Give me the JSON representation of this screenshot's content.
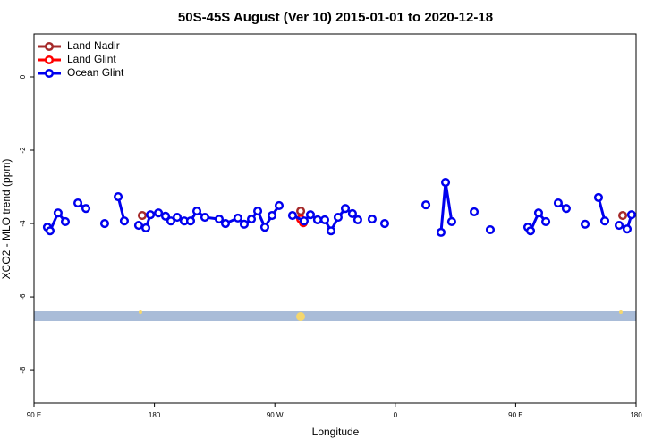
{
  "chart_data": {
    "type": "line",
    "title": "50S-45S August (Ver 10)   2015-01-01 to 2020-12-18",
    "x_label": "Longitude",
    "y_label": "XCO2 - MLO trend (ppm)",
    "xlim": [
      90,
      540
    ],
    "ylim": [
      -8.9,
      1.17
    ],
    "xticks": [
      {
        "value": 90,
        "label": "90 E"
      },
      {
        "value": 180,
        "label": "180"
      },
      {
        "value": 270,
        "label": "90 W"
      },
      {
        "value": 360,
        "label": "0"
      },
      {
        "value": 450,
        "label": "90 E"
      },
      {
        "value": 540,
        "label": "180"
      }
    ],
    "yticks": [
      0,
      -2,
      -4,
      -6,
      -8
    ],
    "grid": false,
    "legend": "top-left",
    "series": [
      {
        "name": "Land Nadir",
        "color": "#a52a2a",
        "x": [
          170.9,
          null,
          289.3,
          null,
          530
        ],
        "values": [
          -3.78,
          null,
          -3.66,
          null,
          -3.78
        ]
      },
      {
        "name": "Land Glint",
        "color": "#ff0000",
        "x": [
          289.3,
          291.3
        ],
        "values": [
          -3.88,
          -3.98
        ]
      },
      {
        "name": "Ocean Glint",
        "color": "#0000ee",
        "x": [
          100,
          102,
          108,
          113.4,
          null,
          122.8,
          128.8,
          null,
          142.8,
          null,
          152.9,
          157.5,
          null,
          168.2,
          173.6,
          177,
          183,
          188.3,
          192.3,
          197,
          202.3,
          207,
          211.7,
          217.7,
          228.4,
          233.1,
          242.4,
          247.1,
          252.5,
          257.2,
          262.5,
          267.9,
          273.2,
          null,
          283.2,
          291.9,
          296.6,
          301.9,
          307.3,
          312,
          317.3,
          322.7,
          328,
          332,
          null,
          342.7,
          null,
          352.1,
          null,
          382.9,
          null,
          394.2,
          397.6,
          402.2,
          null,
          419,
          null,
          431,
          null,
          459.1,
          461.1,
          467.1,
          472.5,
          null,
          481.8,
          487.8,
          null,
          501.9,
          null,
          511.9,
          516.6,
          null,
          527.3,
          533.3,
          536.6
        ],
        "values": [
          -4.1,
          -4.2,
          -3.71,
          -3.95,
          null,
          -3.44,
          -3.59,
          null,
          -4.0,
          null,
          -3.27,
          -3.93,
          null,
          -4.05,
          -4.12,
          -3.76,
          -3.71,
          -3.8,
          -3.93,
          -3.83,
          -3.93,
          -3.93,
          -3.66,
          -3.83,
          -3.88,
          -4.0,
          -3.85,
          -4.02,
          -3.88,
          -3.66,
          -4.1,
          -3.78,
          -3.51,
          null,
          -3.78,
          -3.93,
          -3.76,
          -3.9,
          -3.9,
          -4.2,
          -3.83,
          -3.59,
          -3.73,
          -3.9,
          null,
          -3.88,
          null,
          -4.0,
          null,
          -3.49,
          null,
          -4.24,
          -2.88,
          -3.95,
          null,
          -3.68,
          null,
          -4.17,
          null,
          -4.1,
          -4.2,
          -3.71,
          -3.95,
          null,
          -3.44,
          -3.59,
          null,
          -4.02,
          null,
          -3.29,
          -3.93,
          null,
          -4.05,
          -4.15,
          -3.76
        ]
      }
    ]
  }
}
